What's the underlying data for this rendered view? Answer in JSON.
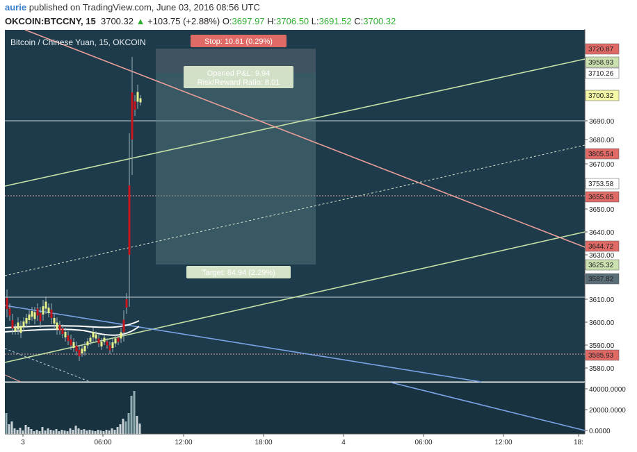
{
  "header": {
    "user": "aurie",
    "published_text": "published on TradingView.com, June 03, 2016 08:56 UTC"
  },
  "ticker": {
    "symbol": "OKCOIN:BTCCNY, 15",
    "last": "3700.32",
    "change_arrow": "▲",
    "change": "+103.75 (+2.88%)",
    "open_label": "O:",
    "open": "3697.97",
    "high_label": "H:",
    "high": "3706.50",
    "low_label": "L:",
    "low": "3691.52",
    "close_label": "C:",
    "close": "3700.32"
  },
  "chart": {
    "title": "Bitcoin / Chinese Yuan, 15, OKCOIN",
    "stop_label": "Stop: 10.61 (0.29%)",
    "pnl_label": "Opened P&L: 9.94",
    "rr_label": "Risk/Reward Ratio: 8.01",
    "target_label": "Target: 84.94 (2.29%)",
    "colors": {
      "background": "#1d3b4a",
      "volume_background": "#18323f",
      "green_line": "#c6e0a6",
      "red_line": "#e89d97",
      "blue_line": "#7aa3e6",
      "candle_up": "#e8f28c",
      "candle_down": "#c8161d"
    }
  },
  "price_axis": {
    "ticks": [
      "3690.00",
      "3680.00",
      "3670.00",
      "3660.00",
      "3650.00",
      "3640.00",
      "3630.00",
      "3620.00",
      "3610.00",
      "3600.00",
      "3590.00",
      "3580.00"
    ],
    "badges": [
      {
        "text": "3720.87",
        "bg": "#e06a66",
        "fg": "#ffffff"
      },
      {
        "text": "3958.93",
        "bg": "#cbe2b0",
        "fg": "#222222"
      },
      {
        "text": "3710.26",
        "bg": "#ffffff",
        "fg": "#222222"
      },
      {
        "text": "3700.32",
        "bg": "#f3f7a6",
        "fg": "#222222"
      },
      {
        "text": "3805.54",
        "bg": "#e06a66",
        "fg": "#ffffff"
      },
      {
        "text": "3753.58",
        "bg": "#ffffff",
        "fg": "#222222"
      },
      {
        "text": "3655.65",
        "bg": "#e06a66",
        "fg": "#ffffff"
      },
      {
        "text": "3644.72",
        "bg": "#e06a66",
        "fg": "#ffffff"
      },
      {
        "text": "3625.32",
        "bg": "#cbe2b0",
        "fg": "#222222"
      },
      {
        "text": "3587.82",
        "bg": "#5a6e78",
        "fg": "#ffffff"
      },
      {
        "text": "3585.93",
        "bg": "#e06a66",
        "fg": "#ffffff"
      }
    ]
  },
  "volume_axis": {
    "ticks": [
      "40000.0000",
      "20000.0000",
      "0.0000"
    ]
  },
  "time_axis": {
    "ticks": [
      "3",
      "06:00",
      "12:00",
      "18:00",
      "4",
      "06:00",
      "12:00",
      "18:"
    ]
  }
}
